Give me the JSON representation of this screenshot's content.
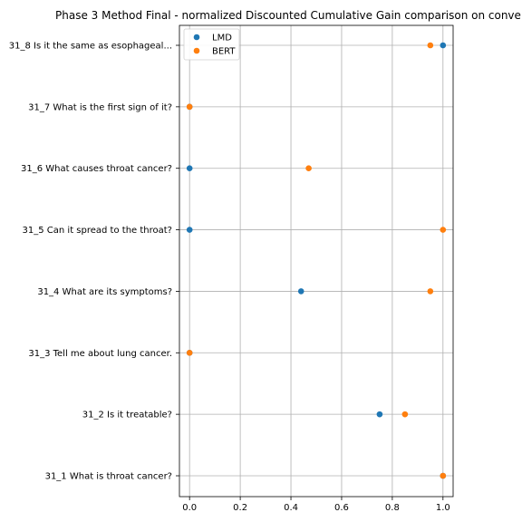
{
  "chart_data": {
    "type": "scatter",
    "title": "Phase 3 Method Final - normalized Discounted Cumulative Gain comparison on conve",
    "xlabel": "",
    "ylabel": "",
    "xlim": [
      -0.04,
      1.04
    ],
    "xticks": [
      "0.0",
      "0.2",
      "0.4",
      "0.6",
      "0.8",
      "1.0"
    ],
    "categories": [
      "31_1 What is throat cancer?",
      "31_2 Is it treatable?",
      "31_3 Tell me about lung cancer.",
      "31_4 What are its symptoms?",
      "31_5 Can it spread to the throat?",
      "31_6 What causes throat cancer?",
      "31_7 What is the first sign of it?",
      "31_8 Is it the same as esophageal..."
    ],
    "series": [
      {
        "name": "LMD",
        "color": "#1f77b4",
        "values": [
          1.0,
          0.75,
          0.0,
          0.44,
          0.0,
          0.0,
          0.0,
          1.0
        ]
      },
      {
        "name": "BERT",
        "color": "#ff7f0e",
        "values": [
          1.0,
          0.85,
          0.0,
          0.95,
          1.0,
          0.47,
          0.0,
          0.95
        ]
      }
    ],
    "grid": true,
    "legend_position": "top-left"
  }
}
